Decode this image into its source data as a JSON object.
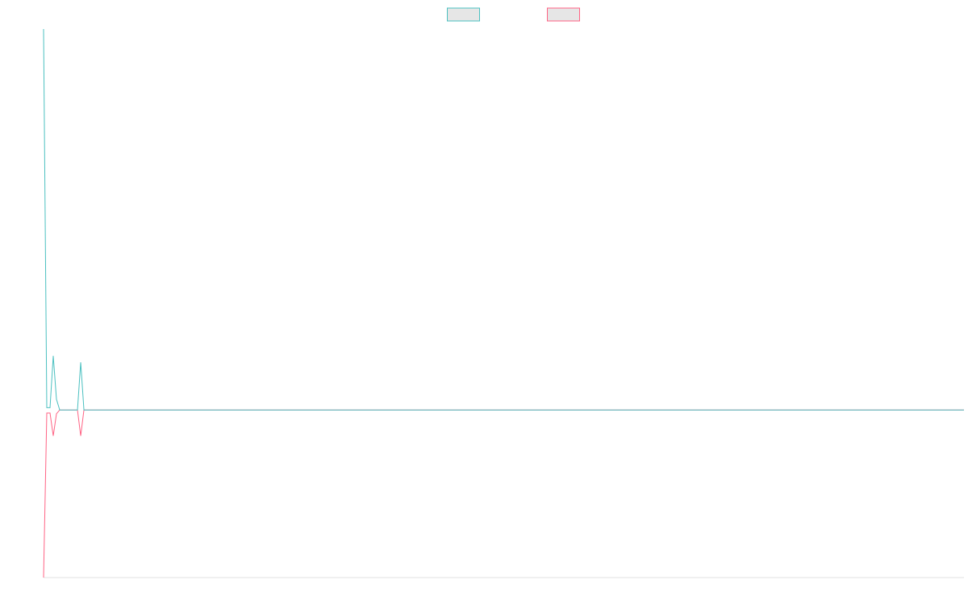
{
  "chart_data": {
    "type": "line",
    "x": [
      0,
      1,
      2,
      3,
      4,
      5,
      10.5,
      11.5,
      12.5,
      285
    ],
    "xlim": [
      0,
      285
    ],
    "ylim": [
      -44,
      100
    ],
    "legend": "top",
    "series": [
      {
        "color": "#4bc0c0",
        "values": [
          100,
          0.6,
          0.6,
          14.2,
          2.8,
          0,
          0,
          12.5,
          0,
          0
        ]
      },
      {
        "color": "#ff6384",
        "values": [
          -44,
          -0.8,
          -0.8,
          -6.8,
          -1,
          0,
          0,
          -6.8,
          0,
          0
        ]
      }
    ]
  }
}
